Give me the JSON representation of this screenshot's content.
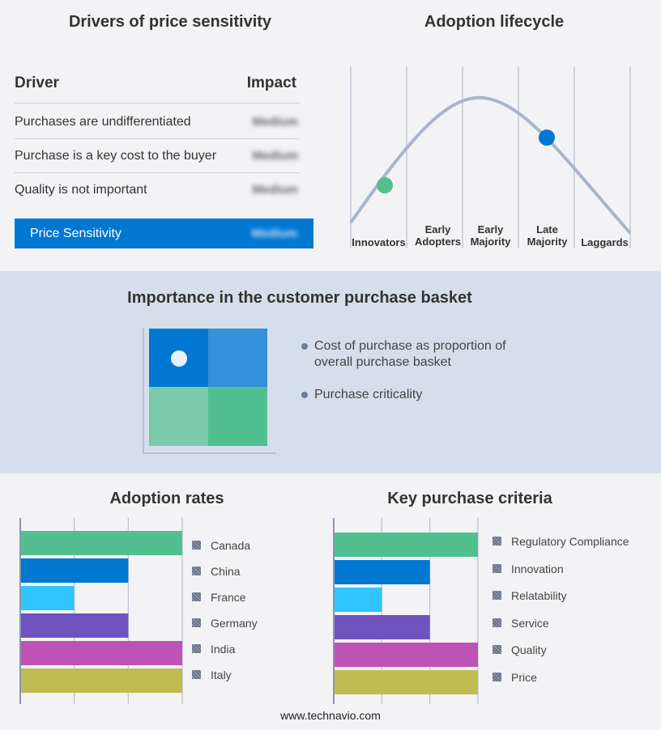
{
  "drivers": {
    "title": "Drivers of price sensitivity",
    "col_driver": "Driver",
    "col_impact": "Impact",
    "rows": [
      {
        "driver": "Purchases are undifferentiated",
        "impact": "Medium"
      },
      {
        "driver": "Purchase is a key cost to the buyer",
        "impact": "Medium"
      },
      {
        "driver": "Quality is not important",
        "impact": "Medium"
      }
    ],
    "summary": {
      "label": "Price Sensitivity",
      "impact": "Medium"
    },
    "accent": "#0077d0"
  },
  "lifecycle": {
    "title": "Adoption lifecycle",
    "stages": [
      "Innovators",
      "Early Adopters",
      "Early Majority",
      "Late Majority",
      "Laggards"
    ],
    "markers": [
      {
        "stage": "Innovators",
        "color": "#52bf90"
      },
      {
        "stage": "Late Majority",
        "color": "#0077d0"
      }
    ]
  },
  "basket": {
    "title": "Importance in the customer purchase basket",
    "bullets": [
      "Cost of purchase as proportion of overall purchase basket",
      "Purchase criticality"
    ],
    "colors": [
      "#0077d0",
      "#3391da",
      "#7ac9ab",
      "#52bf90"
    ]
  },
  "chart_data": [
    {
      "type": "bar",
      "title": "Adoption rates",
      "orientation": "horizontal",
      "categories": [
        "Canada",
        "China",
        "France",
        "Germany",
        "India",
        "Italy"
      ],
      "values": [
        3,
        2,
        1,
        2,
        3,
        3
      ],
      "xlim": [
        0,
        3
      ],
      "grid": true,
      "legend": "right",
      "colors": [
        "#52bf90",
        "#0077d0",
        "#30c5ff",
        "#6f52bd",
        "#bf52b6",
        "#bfbc52"
      ]
    },
    {
      "type": "bar",
      "title": "Key purchase criteria",
      "orientation": "horizontal",
      "categories": [
        "Regulatory Compliance",
        "Innovation",
        "Relatability",
        "Service",
        "Quality",
        "Price"
      ],
      "values": [
        3,
        2,
        1,
        2,
        3,
        3
      ],
      "xlim": [
        0,
        3
      ],
      "grid": true,
      "legend": "right",
      "colors": [
        "#52bf90",
        "#0077d0",
        "#30c5ff",
        "#6f52bd",
        "#bf52b6",
        "#bfbc52"
      ]
    }
  ],
  "footer": "www.technavio.com"
}
